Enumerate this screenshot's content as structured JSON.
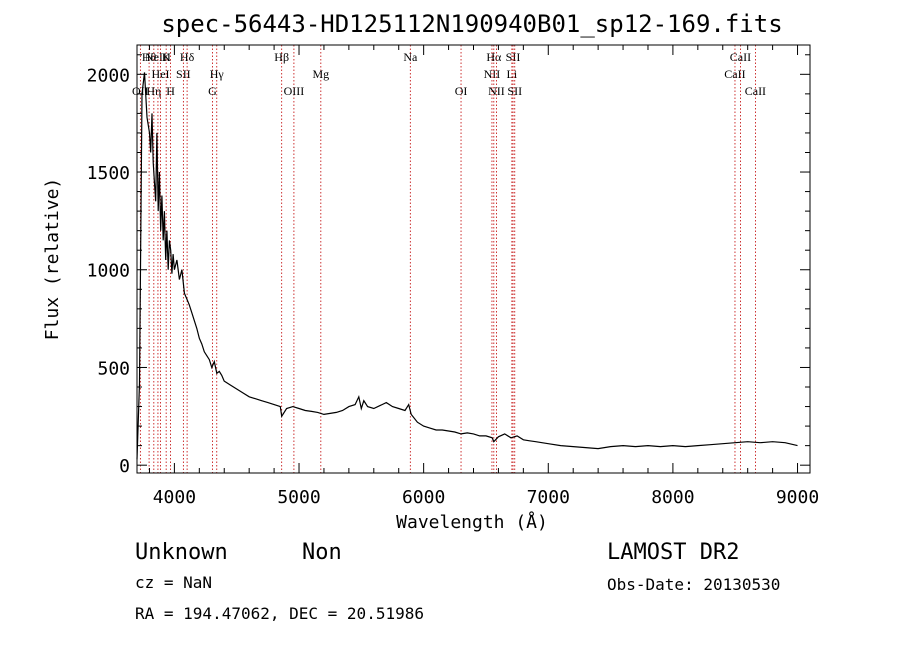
{
  "chart_data": {
    "type": "line",
    "title": "spec-56443-HD125112N190940B01_sp12-169.fits",
    "xlabel": "Wavelength (Å)",
    "ylabel": "Flux (relative)",
    "xlim": [
      3700,
      9100
    ],
    "ylim": [
      -40,
      2150
    ],
    "xticks": [
      4000,
      5000,
      6000,
      7000,
      8000,
      9000
    ],
    "yticks": [
      0,
      500,
      1000,
      1500,
      2000
    ],
    "grid": false,
    "series": [
      {
        "x": [
          3700,
          3720,
          3740,
          3760,
          3780,
          3800,
          3810,
          3820,
          3830,
          3840,
          3850,
          3860,
          3870,
          3880,
          3890,
          3900,
          3910,
          3920,
          3930,
          3940,
          3950,
          3960,
          3970,
          3980,
          3990,
          4000,
          4020,
          4040,
          4060,
          4080,
          4100,
          4120,
          4140,
          4160,
          4180,
          4200,
          4220,
          4240,
          4260,
          4280,
          4300,
          4320,
          4340,
          4360,
          4380,
          4400,
          4450,
          4500,
          4550,
          4600,
          4650,
          4700,
          4750,
          4800,
          4850,
          4861,
          4900,
          4950,
          5000,
          5050,
          5100,
          5150,
          5200,
          5250,
          5300,
          5350,
          5400,
          5450,
          5480,
          5500,
          5520,
          5550,
          5600,
          5650,
          5700,
          5750,
          5800,
          5850,
          5880,
          5900,
          5950,
          6000,
          6050,
          6100,
          6150,
          6200,
          6250,
          6300,
          6350,
          6400,
          6450,
          6500,
          6550,
          6563,
          6600,
          6650,
          6700,
          6750,
          6800,
          6850,
          6900,
          6950,
          7000,
          7100,
          7200,
          7300,
          7400,
          7500,
          7600,
          7700,
          7800,
          7900,
          8000,
          8100,
          8200,
          8300,
          8400,
          8500,
          8600,
          8700,
          8800,
          8900,
          9000
        ],
        "values": [
          30,
          420,
          1900,
          2010,
          1780,
          1700,
          1600,
          1800,
          1550,
          1450,
          1350,
          1700,
          1300,
          1500,
          1200,
          1380,
          1150,
          1300,
          1050,
          1200,
          1000,
          1150,
          1100,
          980,
          1080,
          1000,
          1050,
          950,
          1000,
          880,
          850,
          820,
          780,
          740,
          700,
          650,
          620,
          580,
          560,
          540,
          500,
          530,
          470,
          480,
          460,
          430,
          410,
          390,
          370,
          350,
          340,
          330,
          320,
          310,
          300,
          250,
          290,
          300,
          290,
          280,
          275,
          270,
          260,
          265,
          270,
          280,
          300,
          310,
          350,
          290,
          330,
          300,
          290,
          305,
          320,
          300,
          290,
          280,
          310,
          260,
          220,
          200,
          190,
          180,
          180,
          175,
          170,
          160,
          165,
          160,
          150,
          150,
          140,
          120,
          145,
          160,
          140,
          150,
          130,
          125,
          120,
          115,
          110,
          100,
          95,
          90,
          85,
          95,
          100,
          95,
          100,
          95,
          100,
          95,
          100,
          105,
          110,
          115,
          120,
          115,
          120,
          115,
          100
        ]
      }
    ],
    "lines": [
      {
        "x": 3727,
        "label": "OII",
        "row": 3
      },
      {
        "x": 3797,
        "label": "Hθ",
        "row": 1
      },
      {
        "x": 3835,
        "label": "Hη",
        "row": 3
      },
      {
        "x": 3868,
        "label": "NeIII",
        "row": 1
      },
      {
        "x": 3889,
        "label": "HeI",
        "row": 2
      },
      {
        "x": 3934,
        "label": "K",
        "row": 1
      },
      {
        "x": 3969,
        "label": "H",
        "row": 3
      },
      {
        "x": 4072,
        "label": "SII",
        "row": 2
      },
      {
        "x": 4102,
        "label": "Hδ",
        "row": 1
      },
      {
        "x": 4305,
        "label": "G",
        "row": 3
      },
      {
        "x": 4340,
        "label": "Hγ",
        "row": 2
      },
      {
        "x": 4861,
        "label": "Hβ",
        "row": 1
      },
      {
        "x": 4959,
        "label": "OIII",
        "row": 3
      },
      {
        "x": 5175,
        "label": "Mg",
        "row": 2
      },
      {
        "x": 5893,
        "label": "Na",
        "row": 1
      },
      {
        "x": 6300,
        "label": "OI",
        "row": 3
      },
      {
        "x": 6548,
        "label": "NII",
        "row": 2
      },
      {
        "x": 6563,
        "label": "Hα",
        "row": 1
      },
      {
        "x": 6584,
        "label": "NII",
        "row": 3
      },
      {
        "x": 6708,
        "label": "Li",
        "row": 2
      },
      {
        "x": 6717,
        "label": "SII",
        "row": 1
      },
      {
        "x": 6731,
        "label": "SII",
        "row": 3
      },
      {
        "x": 8498,
        "label": "CaII",
        "row": 2
      },
      {
        "x": 8542,
        "label": "CaII",
        "row": 1
      },
      {
        "x": 8662,
        "label": "CaII",
        "row": 3
      }
    ]
  },
  "info": {
    "class_label": "Unknown",
    "subclass_label": "Non",
    "cz": "cz = NaN",
    "coords": "RA = 194.47062, DEC =  20.51986",
    "survey": "LAMOST DR2",
    "obs_date": "Obs-Date: 20130530"
  }
}
